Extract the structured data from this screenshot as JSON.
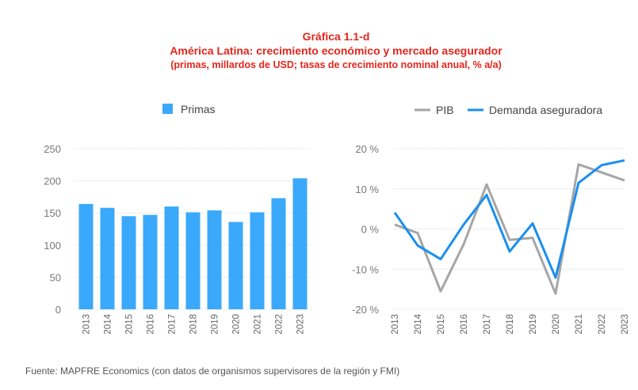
{
  "title": {
    "line1": "Gráfica 1.1-d",
    "line2": "América Latina: crecimiento económico y mercado asegurador",
    "line3": "(primas, millardos de USD; tasas de crecimiento nominal anual, % a/a)"
  },
  "source": "Fuente: MAPFRE Economics (con datos de organismos supervisores de la región y FMI)",
  "colors": {
    "title": "#e3261c",
    "bars": "#3aa9fb",
    "pib": "#a6a6a6",
    "demanda": "#1a8ff0"
  },
  "chart_data": [
    {
      "type": "bar",
      "categories": [
        "2013",
        "2014",
        "2015",
        "2016",
        "2017",
        "2018",
        "2019",
        "2020",
        "2021",
        "2022",
        "2023"
      ],
      "series": [
        {
          "name": "Primas",
          "values": [
            164,
            158,
            145,
            147,
            160,
            151,
            154,
            136,
            151,
            173,
            204
          ]
        }
      ],
      "ylim": [
        0,
        250
      ],
      "yticks": [
        0,
        50,
        100,
        150,
        200,
        250
      ],
      "ytick_labels": [
        "0",
        "50",
        "100",
        "150",
        "200",
        "250"
      ],
      "grid": true,
      "legend": "top"
    },
    {
      "type": "line",
      "categories": [
        "2013",
        "2014",
        "2015",
        "2016",
        "2017",
        "2018",
        "2019",
        "2020",
        "2021",
        "2022",
        "2023"
      ],
      "series": [
        {
          "name": "PIB",
          "values": [
            1.1,
            -1.0,
            -15.5,
            -3.8,
            11.1,
            -2.7,
            -2.2,
            -16.1,
            16.1,
            14.1,
            12.1
          ]
        },
        {
          "name": "Demanda aseguradora",
          "values": [
            4.1,
            -4.1,
            -7.5,
            1.1,
            8.5,
            -5.6,
            1.4,
            -12.1,
            11.5,
            15.9,
            17.1
          ]
        }
      ],
      "ylim": [
        -20,
        20
      ],
      "yticks": [
        -20,
        -10,
        0,
        10,
        20
      ],
      "ytick_labels": [
        "-20 %",
        "-10 %",
        "0 %",
        "10 %",
        "20 %"
      ],
      "grid": true,
      "legend": "top"
    }
  ]
}
